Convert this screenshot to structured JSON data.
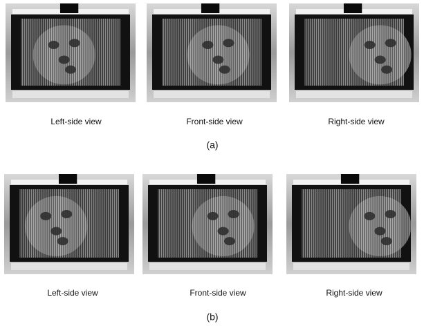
{
  "rows": [
    {
      "views": [
        "Left-side view",
        "Front-side view",
        "Right-side view"
      ],
      "caption": "(a)"
    },
    {
      "views": [
        "Left-side view",
        "Front-side view",
        "Right-side view"
      ],
      "caption": "(b)"
    }
  ]
}
